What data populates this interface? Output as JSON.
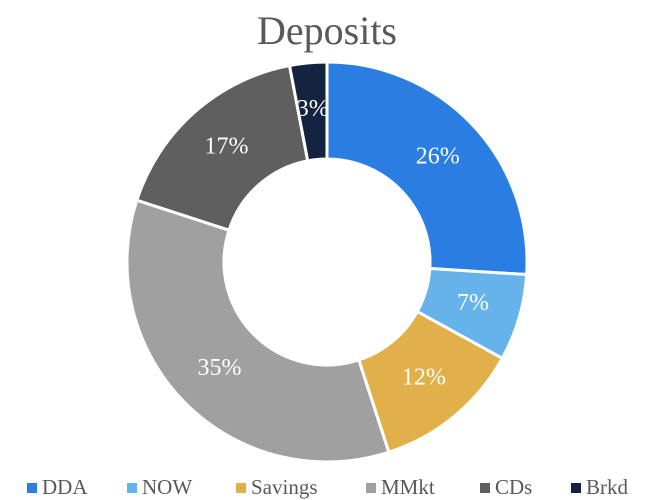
{
  "chart_data": {
    "type": "donut",
    "title": "Deposits",
    "categories": [
      "DDA",
      "NOW",
      "Savings",
      "MMkt",
      "CDs",
      "Brkd"
    ],
    "values": [
      26,
      7,
      12,
      35,
      17,
      3
    ],
    "value_labels": [
      "26%",
      "7%",
      "12%",
      "35%",
      "17%",
      "3%"
    ],
    "colors": [
      "#2a7de1",
      "#65b3ea",
      "#e1b04a",
      "#a0a0a0",
      "#5f5f5f",
      "#142440"
    ],
    "legend": "bottom"
  }
}
